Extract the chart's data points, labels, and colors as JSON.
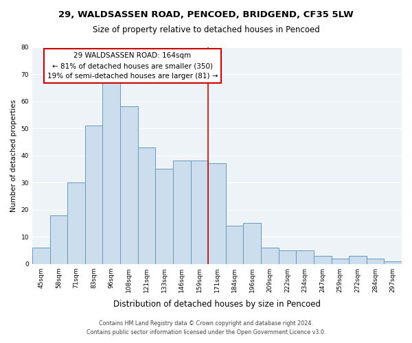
{
  "title": "29, WALDSASSEN ROAD, PENCOED, BRIDGEND, CF35 5LW",
  "subtitle": "Size of property relative to detached houses in Pencoed",
  "xlabel": "Distribution of detached houses by size in Pencoed",
  "ylabel": "Number of detached properties",
  "bar_color": "#ccdded",
  "bar_edge_color": "#6699bb",
  "categories": [
    "45sqm",
    "58sqm",
    "71sqm",
    "83sqm",
    "96sqm",
    "108sqm",
    "121sqm",
    "133sqm",
    "146sqm",
    "159sqm",
    "171sqm",
    "184sqm",
    "196sqm",
    "209sqm",
    "222sqm",
    "234sqm",
    "247sqm",
    "259sqm",
    "272sqm",
    "284sqm",
    "297sqm"
  ],
  "values": [
    6,
    18,
    30,
    51,
    67,
    58,
    43,
    35,
    38,
    38,
    37,
    14,
    15,
    6,
    5,
    5,
    3,
    2,
    3,
    2,
    1
  ],
  "vline_x": 9.5,
  "vline_color": "#cc0000",
  "annotation_title": "29 WALDSASSEN ROAD: 164sqm",
  "annotation_line1": "← 81% of detached houses are smaller (350)",
  "annotation_line2": "19% of semi-detached houses are larger (81) →",
  "ylim": [
    0,
    80
  ],
  "footer1": "Contains HM Land Registry data © Crown copyright and database right 2024.",
  "footer2": "Contains public sector information licensed under the Open Government Licence v3.0.",
  "bg_color": "#eef3f8"
}
